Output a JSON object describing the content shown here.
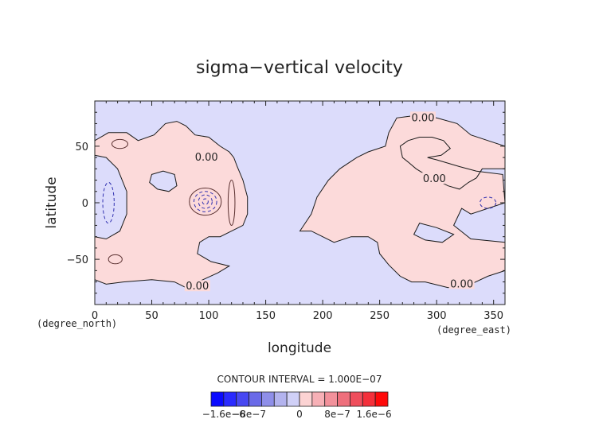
{
  "chart_data": {
    "type": "heatmap",
    "title": "sigma−vertical velocity",
    "xlabel": "longitude",
    "ylabel": "latitude",
    "x_unit": "(degree_east)",
    "y_unit": "(degree_north)",
    "xlim": [
      0,
      360
    ],
    "ylim": [
      -90,
      90
    ],
    "x_ticks": [
      0,
      50,
      100,
      150,
      200,
      250,
      300,
      350
    ],
    "y_ticks": [
      -50,
      0,
      50
    ],
    "grid": false,
    "contour_interval_text": "CONTOUR INTERVAL = 1.000E−07",
    "contour_labels": [
      {
        "text": "0.00",
        "lon": 98,
        "lat": 40
      },
      {
        "text": "0.00",
        "lon": 288,
        "lat": 75
      },
      {
        "text": "0.00",
        "lon": 298,
        "lat": 21
      },
      {
        "text": "0.00",
        "lon": 90,
        "lat": -74
      },
      {
        "text": "0.00",
        "lon": 322,
        "lat": -72
      }
    ],
    "colorbar": {
      "colors": [
        "#0a0aff",
        "#2a2aff",
        "#4848f2",
        "#6a6ae8",
        "#8f8fe9",
        "#b3b3ee",
        "#d0d0f7",
        "#fcd3d3",
        "#f7b0b6",
        "#f2919b",
        "#ee6f7c",
        "#ef4e5c",
        "#f4303b",
        "#ff0a0a"
      ],
      "tick_labels": [
        "−1.6e−6",
        "−8e−7",
        "0",
        "8e−7",
        "1.6e−6"
      ]
    },
    "colors": {
      "negative_background": "#dcdcfb",
      "positive_region": "#fcdada",
      "contour_line": "#1a1a1a"
    },
    "regions": [
      {
        "sign": "positive",
        "name": "western-africa-europe",
        "outline": [
          [
            0,
            55
          ],
          [
            12,
            62
          ],
          [
            28,
            62
          ],
          [
            38,
            55
          ],
          [
            52,
            60
          ],
          [
            62,
            70
          ],
          [
            72,
            72
          ],
          [
            80,
            68
          ],
          [
            88,
            60
          ],
          [
            100,
            58
          ],
          [
            110,
            50
          ],
          [
            118,
            45
          ],
          [
            122,
            40
          ],
          [
            125,
            32
          ],
          [
            130,
            20
          ],
          [
            134,
            5
          ],
          [
            134,
            -10
          ],
          [
            130,
            -20
          ],
          [
            120,
            -25
          ],
          [
            110,
            -30
          ],
          [
            100,
            -30
          ],
          [
            92,
            -35
          ],
          [
            90,
            -45
          ],
          [
            102,
            -52
          ],
          [
            118,
            -56
          ],
          [
            108,
            -62
          ],
          [
            95,
            -68
          ],
          [
            80,
            -75
          ],
          [
            70,
            -70
          ],
          [
            50,
            -68
          ],
          [
            25,
            -70
          ],
          [
            10,
            -72
          ],
          [
            0,
            -68
          ],
          [
            0,
            -30
          ],
          [
            10,
            -32
          ],
          [
            22,
            -25
          ],
          [
            28,
            -10
          ],
          [
            28,
            10
          ],
          [
            20,
            30
          ],
          [
            10,
            40
          ],
          [
            0,
            42
          ]
        ]
      },
      {
        "sign": "positive",
        "name": "asia-australia",
        "outline": [
          [
            180,
            -25
          ],
          [
            190,
            -10
          ],
          [
            195,
            5
          ],
          [
            205,
            20
          ],
          [
            215,
            30
          ],
          [
            230,
            40
          ],
          [
            240,
            45
          ],
          [
            255,
            50
          ],
          [
            258,
            62
          ],
          [
            265,
            75
          ],
          [
            280,
            77
          ],
          [
            300,
            75
          ],
          [
            318,
            70
          ],
          [
            330,
            60
          ],
          [
            345,
            55
          ],
          [
            360,
            50
          ],
          [
            360,
            30
          ],
          [
            340,
            30
          ],
          [
            335,
            22
          ],
          [
            328,
            18
          ],
          [
            320,
            12
          ],
          [
            310,
            15
          ],
          [
            300,
            20
          ],
          [
            290,
            25
          ],
          [
            282,
            30
          ],
          [
            275,
            36
          ],
          [
            270,
            40
          ],
          [
            268,
            50
          ],
          [
            275,
            55
          ],
          [
            285,
            58
          ],
          [
            296,
            58
          ],
          [
            306,
            55
          ],
          [
            312,
            48
          ],
          [
            304,
            42
          ],
          [
            292,
            40
          ],
          [
            300,
            38
          ],
          [
            320,
            32
          ],
          [
            335,
            28
          ],
          [
            358,
            25
          ],
          [
            360,
            0
          ],
          [
            330,
            -10
          ],
          [
            322,
            -5
          ],
          [
            315,
            -20
          ],
          [
            330,
            -32
          ],
          [
            360,
            -35
          ],
          [
            360,
            -60
          ],
          [
            345,
            -65
          ],
          [
            330,
            -72
          ],
          [
            310,
            -75
          ],
          [
            290,
            -70
          ],
          [
            278,
            -70
          ],
          [
            268,
            -65
          ],
          [
            258,
            -55
          ],
          [
            250,
            -45
          ],
          [
            248,
            -35
          ],
          [
            240,
            -30
          ],
          [
            225,
            -30
          ],
          [
            210,
            -35
          ],
          [
            200,
            -30
          ],
          [
            190,
            -25
          ]
        ]
      }
    ],
    "hole_regions": [
      {
        "name": "mediterranean-gap",
        "outline": [
          [
            50,
            25
          ],
          [
            60,
            28
          ],
          [
            70,
            25
          ],
          [
            72,
            15
          ],
          [
            65,
            10
          ],
          [
            55,
            12
          ],
          [
            48,
            18
          ]
        ]
      },
      {
        "name": "pacific-south-gap",
        "outline": [
          [
            285,
            -18
          ],
          [
            300,
            -22
          ],
          [
            315,
            -28
          ],
          [
            305,
            -35
          ],
          [
            290,
            -33
          ],
          [
            280,
            -28
          ]
        ]
      }
    ],
    "contour_features": [
      {
        "kind": "circle",
        "lon": 97,
        "lat": 1,
        "r_lon": 14,
        "r_lat": 12,
        "style": "solid"
      },
      {
        "kind": "circle",
        "lon": 97,
        "lat": 1,
        "r_lon": 10,
        "r_lat": 9,
        "style": "dashed"
      },
      {
        "kind": "circle",
        "lon": 97,
        "lat": 1,
        "r_lon": 6,
        "r_lat": 6,
        "style": "dashed"
      },
      {
        "kind": "circle",
        "lon": 97,
        "lat": 1,
        "r_lon": 2.5,
        "r_lat": 2.5,
        "style": "dashed"
      },
      {
        "kind": "circle",
        "lon": 12,
        "lat": 0,
        "r_lon": 5,
        "r_lat": 18,
        "style": "dashed"
      },
      {
        "kind": "circle",
        "lon": 345,
        "lat": 0,
        "r_lon": 7,
        "r_lat": 5,
        "style": "dashed"
      },
      {
        "kind": "circle",
        "lon": 18,
        "lat": -50,
        "r_lon": 6,
        "r_lat": 4,
        "style": "solid"
      },
      {
        "kind": "circle",
        "lon": 22,
        "lat": 52,
        "r_lon": 7,
        "r_lat": 4,
        "style": "solid"
      },
      {
        "kind": "circle",
        "lon": 120,
        "lat": 0,
        "r_lon": 3,
        "r_lat": 20,
        "style": "solid"
      }
    ]
  }
}
